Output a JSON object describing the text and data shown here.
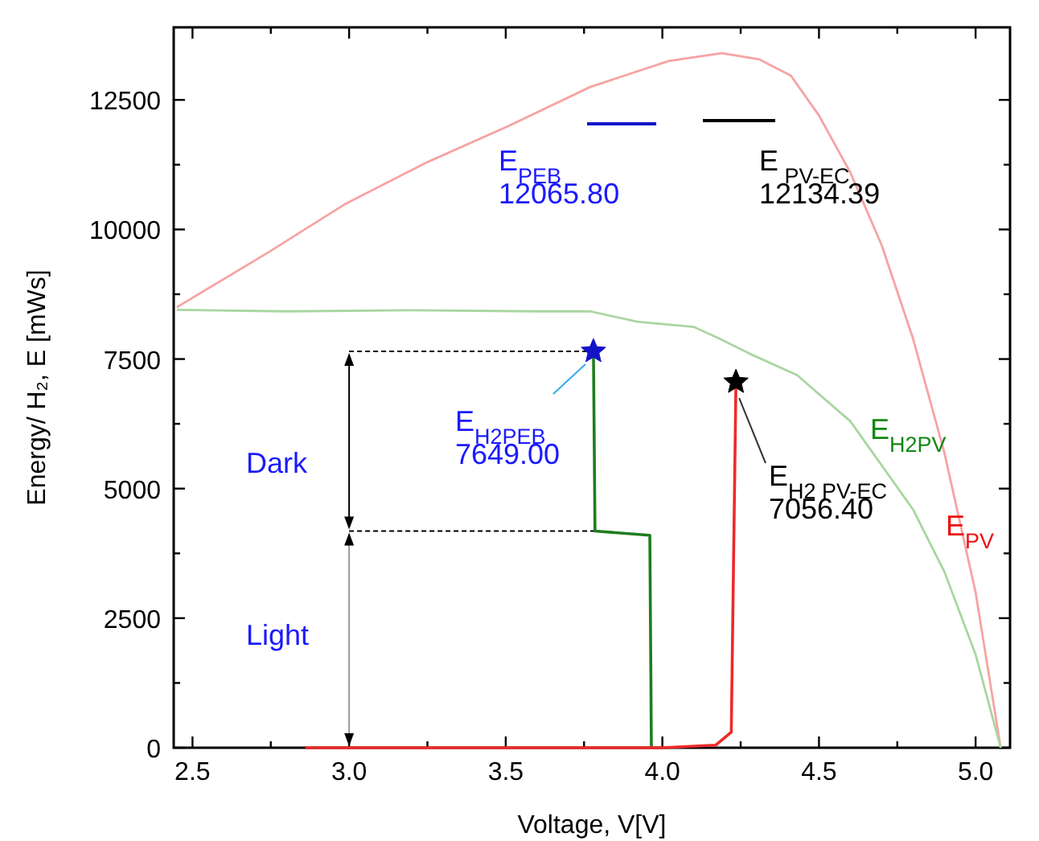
{
  "chart_data": {
    "type": "line",
    "xlabel": "Voltage, V[V]",
    "ylabel": "Energy/ H₂, E [mWs]",
    "xlim": [
      2.44,
      5.11
    ],
    "ylim": [
      0,
      13900
    ],
    "xticks": [
      2.5,
      {
        "value": 2.75,
        "label": null
      },
      "3.0",
      {
        "value": 3.25,
        "label": null
      },
      3.5,
      {
        "value": 3.75,
        "label": null
      },
      "4.0",
      {
        "value": 4.25,
        "label": null
      },
      4.5,
      {
        "value": 4.75,
        "label": null
      },
      "5.0"
    ],
    "yticks": [
      0,
      {
        "value": 1250,
        "label": null
      },
      2500,
      {
        "value": 3750,
        "label": null
      },
      5000,
      {
        "value": 6250,
        "label": null
      },
      7500,
      {
        "value": 8750,
        "label": null
      },
      10000,
      {
        "value": 11250,
        "label": null
      },
      12500
    ],
    "grid": false,
    "marker": "none",
    "line_style": "solid",
    "series": [
      {
        "name": "E$_{PV}$",
        "color": "#f7a3a3",
        "x": [
          2.45,
          2.74,
          2.99,
          3.25,
          3.51,
          3.77,
          4.02,
          4.19,
          4.31,
          4.41,
          4.5,
          4.6,
          4.7,
          4.8,
          4.9,
          5.0,
          5.08
        ],
        "values": [
          8500,
          9550,
          10500,
          11300,
          12000,
          12750,
          13250,
          13400,
          13280,
          12970,
          12200,
          11100,
          9700,
          7900,
          5700,
          3000,
          0
        ]
      },
      {
        "name": "E$_{H2PV}$",
        "color": "#a9d6a1",
        "x": [
          2.45,
          2.8,
          3.2,
          3.6,
          3.77,
          3.92,
          4.1,
          4.18,
          4.28,
          4.43,
          4.6,
          4.8,
          4.9,
          5.0,
          5.08
        ],
        "values": [
          8450,
          8420,
          8440,
          8420,
          8420,
          8220,
          8120,
          7900,
          7600,
          7190,
          6300,
          4600,
          3400,
          1800,
          0
        ]
      },
      {
        "type": "line",
        "color": "#1e7d1e",
        "x": [
          3.78,
          3.785,
          3.96,
          3.965
        ],
        "values": [
          7649,
          4180,
          4100,
          0
        ]
      },
      {
        "type": "line",
        "color": "#ee2a2a",
        "x": [
          2.86,
          3.5,
          4.0,
          4.17,
          4.22,
          4.235
        ],
        "values": [
          0,
          0,
          0,
          50,
          300,
          7056
        ]
      },
      {
        "type": "scatter",
        "marker": "star",
        "color": "#1414c8",
        "x": [
          3.78
        ],
        "values": [
          7649
        ]
      },
      {
        "type": "scatter",
        "marker": "star",
        "color": "#000000",
        "x": [
          4.235
        ],
        "values": [
          7056
        ]
      }
    ],
    "annotations": [
      "E$_{PEB}$\n12065.80",
      "E$_{ PV-EC}$\n12134.39",
      {
        "text": "E$_{H2PEB}$\n7649.00",
        "x": 3.78,
        "y": 7649
      },
      {
        "text": "E$_{H2 PV-EC}$\n7056.40",
        "x": 4.235,
        "y": 7056
      },
      "Dark",
      "Light"
    ]
  }
}
